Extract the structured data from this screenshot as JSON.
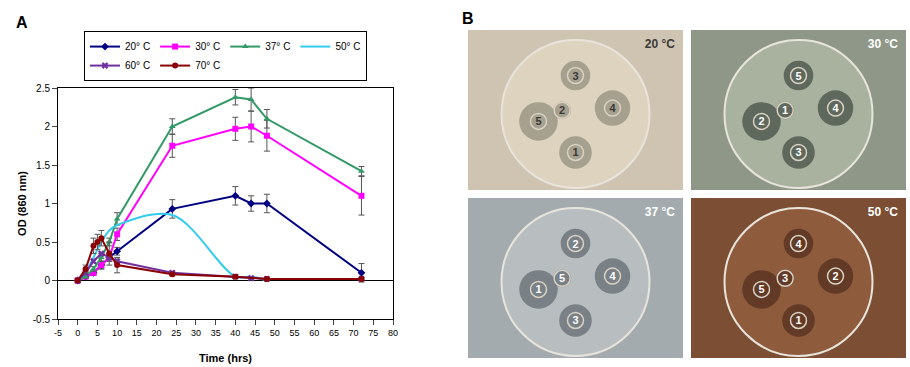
{
  "chart_data": {
    "type": "line",
    "panel": "A",
    "x_label": "Time (hrs)",
    "y_label": "OD (860 nm)",
    "xlim": [
      -5,
      80
    ],
    "xticks": [
      -5,
      0,
      5,
      10,
      15,
      20,
      25,
      30,
      35,
      40,
      45,
      50,
      55,
      60,
      65,
      70,
      75,
      80
    ],
    "ylim": [
      -0.5,
      2.5
    ],
    "yticks": [
      -0.5,
      0,
      0.5,
      1,
      1.5,
      2,
      2.5
    ],
    "grid": false,
    "legend": "top",
    "series": [
      {
        "name": "20° C",
        "color": "#000080",
        "marker": "diamond",
        "line_style": "solid",
        "x": [
          0,
          2,
          4,
          6,
          8,
          10,
          24,
          40,
          44,
          48,
          72
        ],
        "values": [
          0,
          0.05,
          0.1,
          0.2,
          0.3,
          0.38,
          0.93,
          1.1,
          1.0,
          1.0,
          0.1
        ],
        "errors": [
          0,
          0.02,
          0.03,
          0.05,
          0.05,
          0.05,
          0.12,
          0.12,
          0.1,
          0.12,
          0.12
        ]
      },
      {
        "name": "30° C",
        "color": "#ff00ff",
        "marker": "square",
        "line_style": "solid",
        "x": [
          0,
          2,
          4,
          6,
          8,
          10,
          24,
          40,
          44,
          48,
          72
        ],
        "values": [
          0,
          0.05,
          0.1,
          0.2,
          0.3,
          0.6,
          1.75,
          1.97,
          2.0,
          1.88,
          1.1
        ],
        "errors": [
          0,
          0.02,
          0.03,
          0.05,
          0.05,
          0.08,
          0.15,
          0.15,
          0.2,
          0.2,
          0.25
        ]
      },
      {
        "name": "37° C",
        "color": "#339966",
        "marker": "triangle-up",
        "line_style": "solid",
        "x": [
          0,
          2,
          4,
          6,
          8,
          10,
          24,
          40,
          44,
          48,
          72
        ],
        "values": [
          0,
          0.05,
          0.15,
          0.3,
          0.5,
          0.8,
          2.0,
          2.38,
          2.35,
          2.1,
          1.42
        ],
        "errors": [
          0,
          0.02,
          0.03,
          0.05,
          0.05,
          0.08,
          0.1,
          0.1,
          0.15,
          0.12,
          0.06
        ]
      },
      {
        "name": "50° C",
        "color": "#33ccee",
        "marker": "none",
        "line_style": "smooth",
        "x": [
          0,
          2,
          4,
          6,
          8,
          10,
          24,
          40,
          44,
          48
        ],
        "values": [
          0,
          0.1,
          0.3,
          0.5,
          0.65,
          0.72,
          0.85,
          0.05,
          0.05,
          0
        ]
      },
      {
        "name": "60° C",
        "color": "#7030a0",
        "marker": "x",
        "line_style": "solid",
        "x": [
          0,
          2,
          4,
          6,
          8,
          10,
          24,
          40,
          44,
          48,
          72
        ],
        "values": [
          0,
          0.1,
          0.25,
          0.35,
          0.3,
          0.25,
          0.1,
          0.05,
          0.03,
          0.02,
          0.02
        ]
      },
      {
        "name": "70° C",
        "color": "#8b0000",
        "marker": "circle",
        "line_style": "solid",
        "x": [
          0,
          2,
          4,
          5,
          6,
          8,
          10,
          24,
          40,
          48,
          72
        ],
        "values": [
          0,
          0.15,
          0.45,
          0.5,
          0.55,
          0.35,
          0.2,
          0.08,
          0.05,
          0.02,
          0.02
        ],
        "errors": [
          0,
          0.05,
          0.1,
          0.1,
          0.1,
          0.15,
          0.1,
          0.02,
          0.02,
          0.01,
          0.01
        ]
      }
    ]
  },
  "figure": {
    "panel": "B",
    "plates": [
      {
        "title": "20 °C",
        "wells": [
          "3",
          "4",
          "1",
          "5",
          "2"
        ]
      },
      {
        "title": "30 °C",
        "wells": [
          "5",
          "4",
          "3",
          "2",
          "1"
        ]
      },
      {
        "title": "37 °C",
        "wells": [
          "2",
          "4",
          "3",
          "1",
          "5"
        ]
      },
      {
        "title": "50 °C",
        "wells": [
          "4",
          "2",
          "1",
          "5",
          "3"
        ]
      }
    ]
  }
}
